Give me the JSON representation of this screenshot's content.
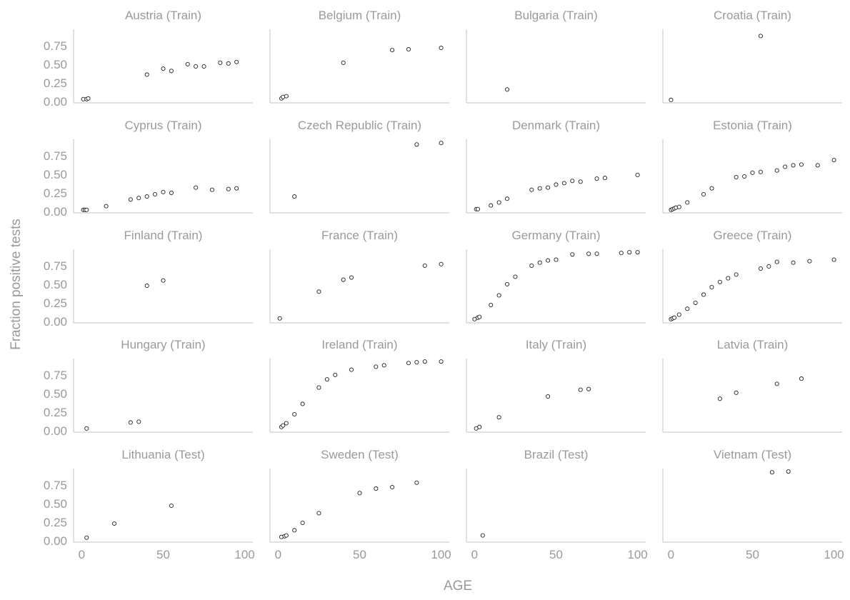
{
  "chart_data": {
    "type": "scatter",
    "xlabel": "AGE",
    "ylabel": "Fraction positive tests",
    "xlim": [
      -5,
      105
    ],
    "ylim": [
      -0.02,
      0.97
    ],
    "xticks": [
      0,
      50,
      100
    ],
    "yticks": [
      0,
      0.25,
      0.5,
      0.75
    ],
    "ytick_labels": [
      "0.00",
      "0.25",
      "0.50",
      "0.75"
    ],
    "grid": false,
    "panels": [
      {
        "title": "Austria (Train)",
        "x": [
          1,
          3,
          4,
          40,
          50,
          55,
          65,
          70,
          75,
          85,
          90,
          95
        ],
        "y": [
          0.03,
          0.03,
          0.04,
          0.36,
          0.44,
          0.41,
          0.5,
          0.47,
          0.47,
          0.52,
          0.51,
          0.53
        ]
      },
      {
        "title": "Belgium (Train)",
        "x": [
          2,
          3,
          5,
          40,
          70,
          80,
          100
        ],
        "y": [
          0.04,
          0.06,
          0.07,
          0.52,
          0.69,
          0.7,
          0.72
        ]
      },
      {
        "title": "Bulgaria (Train)",
        "x": [
          20
        ],
        "y": [
          0.16
        ]
      },
      {
        "title": "Croatia (Train)",
        "x": [
          0,
          55
        ],
        "y": [
          0.02,
          0.88
        ]
      },
      {
        "title": "Cyprus (Train)",
        "x": [
          1,
          2,
          3,
          15,
          30,
          35,
          40,
          45,
          50,
          55,
          70,
          80,
          90,
          95
        ],
        "y": [
          0.02,
          0.02,
          0.02,
          0.07,
          0.16,
          0.18,
          0.2,
          0.23,
          0.26,
          0.25,
          0.32,
          0.29,
          0.3,
          0.31
        ]
      },
      {
        "title": "Czech Republic (Train)",
        "x": [
          10,
          85,
          100
        ],
        "y": [
          0.2,
          0.9,
          0.92
        ]
      },
      {
        "title": "Denmark (Train)",
        "x": [
          1,
          2,
          10,
          15,
          20,
          35,
          40,
          45,
          50,
          55,
          60,
          65,
          75,
          80,
          100
        ],
        "y": [
          0.03,
          0.03,
          0.08,
          0.12,
          0.17,
          0.29,
          0.31,
          0.32,
          0.36,
          0.38,
          0.41,
          0.4,
          0.44,
          0.45,
          0.49
        ]
      },
      {
        "title": "Estonia (Train)",
        "x": [
          0,
          1,
          2,
          3,
          5,
          10,
          20,
          25,
          40,
          45,
          50,
          55,
          65,
          70,
          75,
          80,
          90,
          100
        ],
        "y": [
          0.02,
          0.03,
          0.04,
          0.05,
          0.06,
          0.12,
          0.23,
          0.31,
          0.46,
          0.47,
          0.52,
          0.53,
          0.55,
          0.6,
          0.62,
          0.63,
          0.62,
          0.69
        ]
      },
      {
        "title": "Finland (Train)",
        "x": [
          40,
          50
        ],
        "y": [
          0.48,
          0.55
        ]
      },
      {
        "title": "France (Train)",
        "x": [
          1,
          25,
          40,
          45,
          90,
          100
        ],
        "y": [
          0.04,
          0.4,
          0.56,
          0.59,
          0.75,
          0.77
        ]
      },
      {
        "title": "Germany (Train)",
        "x": [
          0,
          2,
          3,
          10,
          15,
          20,
          25,
          35,
          40,
          45,
          50,
          60,
          70,
          75,
          90,
          95,
          100
        ],
        "y": [
          0.03,
          0.05,
          0.06,
          0.22,
          0.35,
          0.5,
          0.6,
          0.75,
          0.79,
          0.82,
          0.83,
          0.9,
          0.91,
          0.91,
          0.92,
          0.93,
          0.93
        ]
      },
      {
        "title": "Greece (Train)",
        "x": [
          0,
          1,
          2,
          5,
          10,
          15,
          20,
          25,
          30,
          35,
          40,
          55,
          60,
          65,
          75,
          85,
          100
        ],
        "y": [
          0.03,
          0.04,
          0.05,
          0.09,
          0.17,
          0.25,
          0.36,
          0.46,
          0.53,
          0.58,
          0.63,
          0.71,
          0.74,
          0.8,
          0.79,
          0.81,
          0.83
        ]
      },
      {
        "title": "Hungary (Train)",
        "x": [
          3,
          30,
          35
        ],
        "y": [
          0.03,
          0.11,
          0.12
        ]
      },
      {
        "title": "Ireland (Train)",
        "x": [
          2,
          3,
          5,
          10,
          15,
          25,
          30,
          35,
          45,
          60,
          65,
          80,
          85,
          90,
          100
        ],
        "y": [
          0.05,
          0.07,
          0.1,
          0.22,
          0.36,
          0.58,
          0.69,
          0.75,
          0.82,
          0.86,
          0.88,
          0.91,
          0.92,
          0.93,
          0.93
        ]
      },
      {
        "title": "Italy (Train)",
        "x": [
          1,
          3,
          15,
          45,
          65,
          70
        ],
        "y": [
          0.03,
          0.05,
          0.18,
          0.46,
          0.55,
          0.56
        ]
      },
      {
        "title": "Latvia (Train)",
        "x": [
          30,
          40,
          65,
          80
        ],
        "y": [
          0.43,
          0.51,
          0.63,
          0.7
        ]
      },
      {
        "title": "Lithuania (Test)",
        "x": [
          3,
          20,
          55
        ],
        "y": [
          0.04,
          0.23,
          0.47
        ]
      },
      {
        "title": "Sweden (Test)",
        "x": [
          2,
          4,
          5,
          10,
          15,
          25,
          50,
          60,
          70,
          85
        ],
        "y": [
          0.05,
          0.06,
          0.07,
          0.14,
          0.24,
          0.37,
          0.64,
          0.7,
          0.72,
          0.78
        ]
      },
      {
        "title": "Brazil (Test)",
        "x": [
          5
        ],
        "y": [
          0.07
        ]
      },
      {
        "title": "Vietnam (Test)",
        "x": [
          62,
          72
        ],
        "y": [
          0.92,
          0.93
        ]
      }
    ]
  }
}
